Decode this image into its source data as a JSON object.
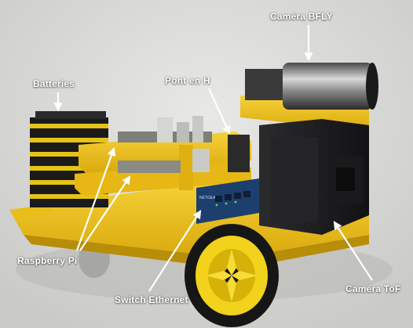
{
  "colors": {
    "background": "#dcdcda",
    "chassis_yellow": "#f2c81c",
    "chassis_shadow": "#c79d0a",
    "camera_black": "#1f1f21",
    "label_text": "#ffffff"
  },
  "labels": {
    "camera_bfly": "Caméra BFLY",
    "batteries": "Batteries",
    "pont_en_h": "Pont en H",
    "raspberry_pi": "Raspberry Pi",
    "switch_ethernet": "Switch Ethernet",
    "camera_tof": "Caméra ToF"
  },
  "switch_brand": "NETGEAR"
}
